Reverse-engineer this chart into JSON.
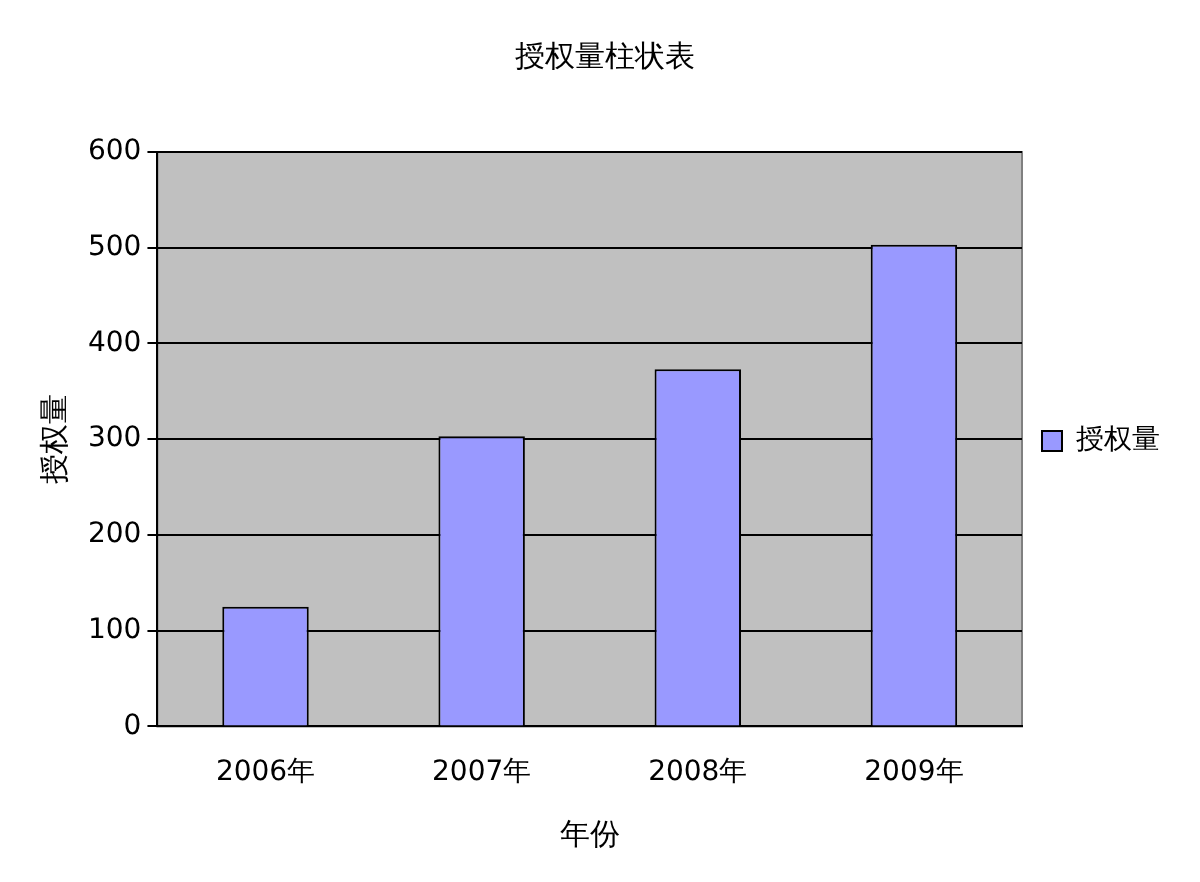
{
  "chart_data": {
    "type": "bar",
    "title": "授权量柱状表",
    "xlabel": "年份",
    "ylabel": "授权量",
    "categories": [
      "2006年",
      "2007年",
      "2008年",
      "2009年"
    ],
    "series": [
      {
        "name": "授权量",
        "color": "#9999ff",
        "values": [
          125,
          303,
          373,
          503
        ]
      }
    ],
    "ylim": [
      0,
      600
    ],
    "yticks": [
      0,
      100,
      200,
      300,
      400,
      500,
      600
    ],
    "grid": "y",
    "legend": "right"
  }
}
